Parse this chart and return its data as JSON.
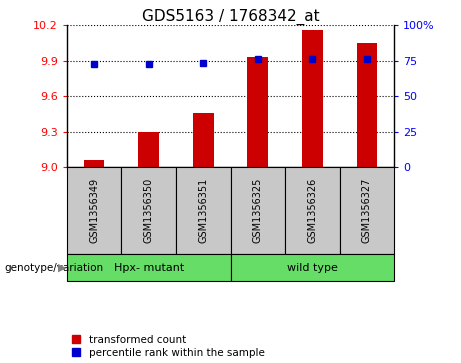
{
  "title": "GDS5163 / 1768342_at",
  "samples": [
    "GSM1356349",
    "GSM1356350",
    "GSM1356351",
    "GSM1356325",
    "GSM1356326",
    "GSM1356327"
  ],
  "red_values": [
    9.06,
    9.3,
    9.46,
    9.93,
    10.16,
    10.05
  ],
  "blue_values": [
    9.875,
    9.876,
    9.878,
    9.916,
    9.916,
    9.916
  ],
  "ymin": 9.0,
  "ymax": 10.2,
  "yticks_left": [
    9.0,
    9.3,
    9.6,
    9.9,
    10.2
  ],
  "yticks_right_vals": [
    0,
    25,
    50,
    75,
    100
  ],
  "yticks_right_labels": [
    "0",
    "25",
    "50",
    "75",
    "100%"
  ],
  "bar_color": "#cc0000",
  "dot_color": "#0000cc",
  "title_fontsize": 11,
  "tick_fontsize": 8,
  "label_area_color": "#c8c8c8",
  "green_color": "#66DD66",
  "legend_red_label": "transformed count",
  "legend_blue_label": "percentile rank within the sample",
  "genotype_label": "genotype/variation"
}
